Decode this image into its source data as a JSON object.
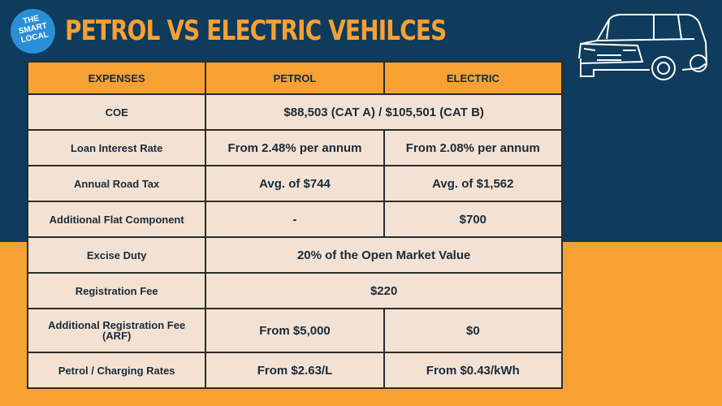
{
  "logo": {
    "lines": [
      "THE",
      "SMART",
      "LOCAL"
    ]
  },
  "header": {
    "title": "PETROL VS ELECTRIC VEHILCES"
  },
  "table": {
    "columns": [
      "EXPENSES",
      "PETROL",
      "ELECTRIC"
    ],
    "rows": [
      [
        "COE",
        "$88,503 (CAT A) / $105,501 (CAT B)"
      ],
      [
        "Loan Interest Rate",
        "From 2.48% per annum",
        "From 2.08% per annum"
      ],
      [
        "Annual Road Tax",
        "Avg. of $744",
        "Avg. of $1,562"
      ],
      [
        "Additional Flat Component",
        "-",
        "$700"
      ],
      [
        "Excise Duty",
        "20% of the Open Market Value"
      ],
      [
        "Registration Fee",
        "$220"
      ],
      [
        "Additional Registration Fee (ARF)",
        "From $5,000",
        "$0"
      ],
      [
        "Petrol / Charging Rates",
        "From $2.63/L",
        "From $0.43/kWh"
      ]
    ]
  }
}
